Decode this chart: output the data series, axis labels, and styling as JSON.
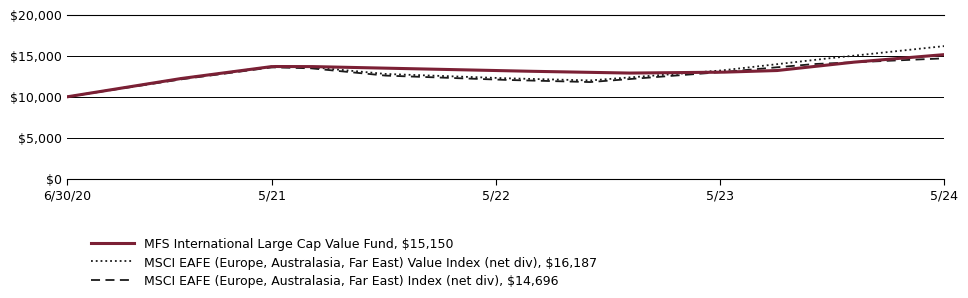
{
  "x_labels": [
    "6/30/20",
    "5/21",
    "5/22",
    "5/23",
    "5/24"
  ],
  "x_positions": [
    0,
    11,
    23,
    35,
    47
  ],
  "fund_color": "#7B2035",
  "index_dotted_color": "#1a1a1a",
  "index_dashed_color": "#1a1a1a",
  "ylim": [
    0,
    20000
  ],
  "yticks": [
    0,
    5000,
    10000,
    15000,
    20000
  ],
  "legend_entries": [
    "MFS International Large Cap Value Fund, $15,150",
    "MSCI EAFE (Europe, Australasia, Far East) Value Index (net div), $16,187",
    "MSCI EAFE (Europe, Australasia, Far East) Index (net div), $14,696"
  ],
  "background_color": "#ffffff",
  "grid_color": "#000000",
  "tick_label_fontsize": 9,
  "legend_fontsize": 9,
  "fund_knots_x": [
    0,
    6,
    11,
    13,
    23,
    30,
    35,
    38,
    42,
    47
  ],
  "fund_knots_y": [
    10000,
    12200,
    13700,
    13700,
    13200,
    12900,
    13000,
    13200,
    14200,
    15150
  ],
  "value_idx_knots_x": [
    0,
    6,
    11,
    13,
    17,
    23,
    28,
    35,
    40,
    47
  ],
  "value_idx_knots_y": [
    10000,
    12200,
    13700,
    13650,
    12800,
    12300,
    12000,
    13200,
    14500,
    16187
  ],
  "idx_knots_x": [
    0,
    6,
    11,
    13,
    17,
    23,
    28,
    35,
    40,
    47
  ],
  "idx_knots_y": [
    10000,
    12100,
    13600,
    13500,
    12600,
    12100,
    11800,
    13000,
    14000,
    14696
  ]
}
